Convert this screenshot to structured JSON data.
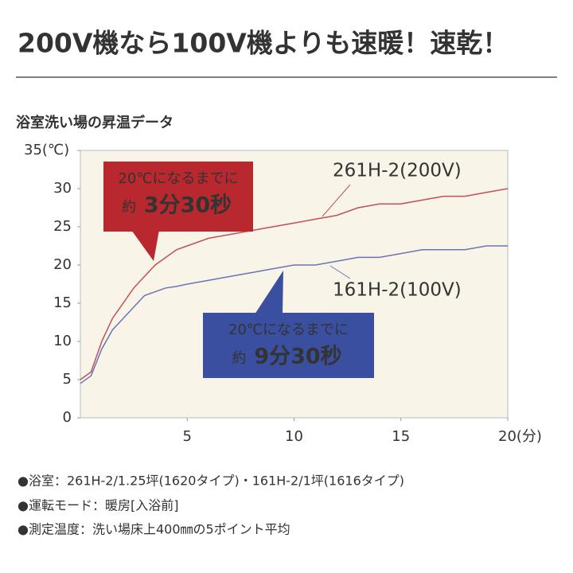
{
  "header": {
    "title": "200V機なら100V機よりも速暖！速乾！"
  },
  "chart_data": {
    "type": "line",
    "title": "浴室洗い場の昇温データ",
    "x": [
      0,
      0.5,
      1,
      1.5,
      2,
      2.5,
      3,
      3.5,
      4,
      4.5,
      5,
      6,
      7,
      8,
      9,
      10,
      11,
      12,
      13,
      14,
      15,
      16,
      17,
      18,
      19,
      20
    ],
    "series": [
      {
        "name": "261H-2(200V)",
        "color": "#c0505a",
        "values": [
          5,
          6,
          10,
          13,
          15,
          17,
          18.5,
          20,
          21,
          22,
          22.5,
          23.5,
          24,
          24.5,
          25,
          25.5,
          26,
          26.5,
          27.5,
          28,
          28,
          28.5,
          29,
          29,
          29.5,
          30
        ]
      },
      {
        "name": "161H-2(100V)",
        "color": "#6a74b8",
        "values": [
          4.5,
          5.5,
          9,
          11.5,
          13,
          14.5,
          16,
          16.5,
          17,
          17.2,
          17.5,
          18,
          18.5,
          19,
          19.5,
          20,
          20,
          20.5,
          21,
          21,
          21.5,
          22,
          22,
          22,
          22.5,
          22.5
        ]
      }
    ],
    "xlim": [
      0,
      20
    ],
    "xticks": [
      5,
      10,
      15,
      {
        "value": 20,
        "label": "20(分)"
      }
    ],
    "ylim": [
      0,
      35
    ],
    "yticks": [
      0,
      5,
      10,
      15,
      20,
      25,
      30,
      {
        "value": 35,
        "label": "35(℃)"
      }
    ],
    "annotations": [
      {
        "color": "#b8282e",
        "lines": [
          "20℃になるまでに",
          "約",
          "3分30秒"
        ]
      },
      {
        "color": "#3a4fa0",
        "lines": [
          "20℃になるまでに",
          "約",
          "9分30秒"
        ]
      }
    ]
  },
  "notes": [
    "●浴室：261H-2/1.25坪(1620タイプ)・161H-2/1坪(1616タイプ)",
    "●運転モード：暖房[入浴前]",
    "●測定温度：洗い場床上400㎜の5ポイント平均"
  ]
}
